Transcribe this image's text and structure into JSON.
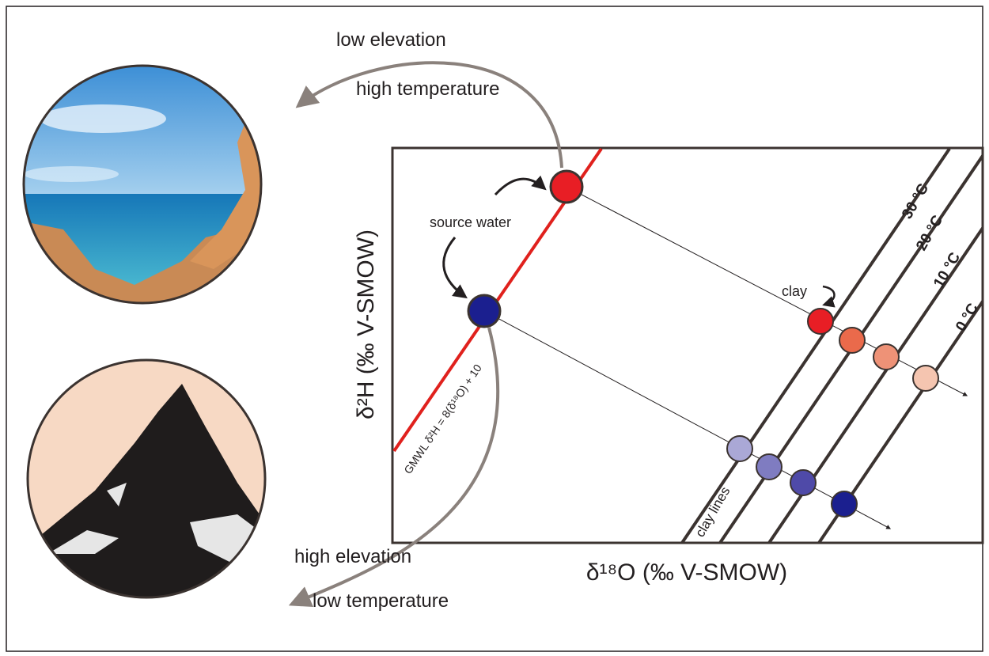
{
  "labels": {
    "upper_arrow_top": "low  elevation",
    "upper_arrow_bottom": "high temperature",
    "lower_arrow_top": "high elevation",
    "lower_arrow_bottom": "low temperature",
    "source_water": "source water",
    "clay": "clay",
    "clay_lines": "clay lines",
    "gmwl": "GMWL δ²H = 8(δ¹⁸O) + 10",
    "temps": [
      "30 °C",
      "20 °C",
      "10 °C",
      "0 °C"
    ]
  },
  "axes": {
    "y_label": "δ²H (‰ V-SMOW)",
    "x_label": "δ¹⁸O (‰ V-SMOW)"
  }
}
